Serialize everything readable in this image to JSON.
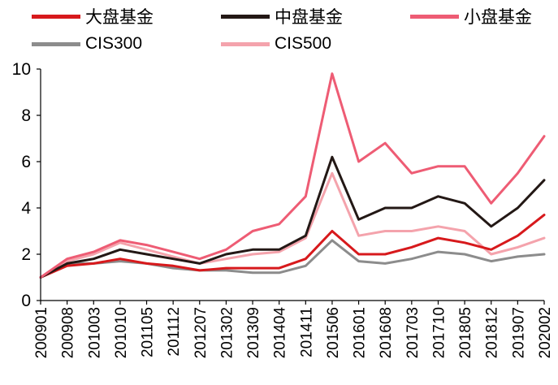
{
  "chart_data": {
    "type": "line",
    "title": "",
    "xlabel": "",
    "ylabel": "",
    "ylim": [
      0,
      10
    ],
    "yticks": [
      "0",
      "2",
      "4",
      "6",
      "8",
      "10"
    ],
    "x": [
      "200901",
      "200908",
      "201003",
      "201010",
      "201105",
      "201112",
      "201207",
      "201302",
      "201309",
      "201404",
      "201411",
      "201506",
      "201601",
      "201608",
      "201703",
      "201710",
      "201805",
      "201812",
      "201907",
      "202002"
    ],
    "grid": false,
    "legend_position": "top",
    "series": [
      {
        "name": "大盘基金",
        "color": "#d7191c",
        "values": [
          1.0,
          1.5,
          1.6,
          1.8,
          1.6,
          1.5,
          1.3,
          1.4,
          1.4,
          1.4,
          1.8,
          3.0,
          2.0,
          2.0,
          2.3,
          2.7,
          2.5,
          2.2,
          2.8,
          3.7
        ]
      },
      {
        "name": "中盘基金",
        "color": "#231815",
        "values": [
          1.0,
          1.6,
          1.8,
          2.2,
          2.0,
          1.8,
          1.6,
          2.0,
          2.2,
          2.2,
          2.8,
          6.2,
          3.5,
          4.0,
          4.0,
          4.5,
          4.2,
          3.2,
          4.0,
          5.2
        ]
      },
      {
        "name": "小盘基金",
        "color": "#ee5c74",
        "values": [
          1.0,
          1.8,
          2.1,
          2.6,
          2.4,
          2.1,
          1.8,
          2.2,
          3.0,
          3.3,
          4.5,
          9.8,
          6.0,
          6.8,
          5.5,
          5.8,
          5.8,
          4.2,
          5.5,
          7.1
        ]
      },
      {
        "name": "CIS300",
        "color": "#8c8c8c",
        "values": [
          1.0,
          1.6,
          1.6,
          1.7,
          1.6,
          1.4,
          1.3,
          1.3,
          1.2,
          1.2,
          1.5,
          2.6,
          1.7,
          1.6,
          1.8,
          2.1,
          2.0,
          1.7,
          1.9,
          2.0
        ]
      },
      {
        "name": "CIS500",
        "color": "#f4a3ac",
        "values": [
          1.0,
          1.7,
          2.0,
          2.5,
          2.2,
          1.9,
          1.6,
          1.8,
          2.0,
          2.1,
          2.7,
          5.5,
          2.8,
          3.0,
          3.0,
          3.2,
          3.0,
          2.0,
          2.3,
          2.7
        ]
      }
    ]
  }
}
